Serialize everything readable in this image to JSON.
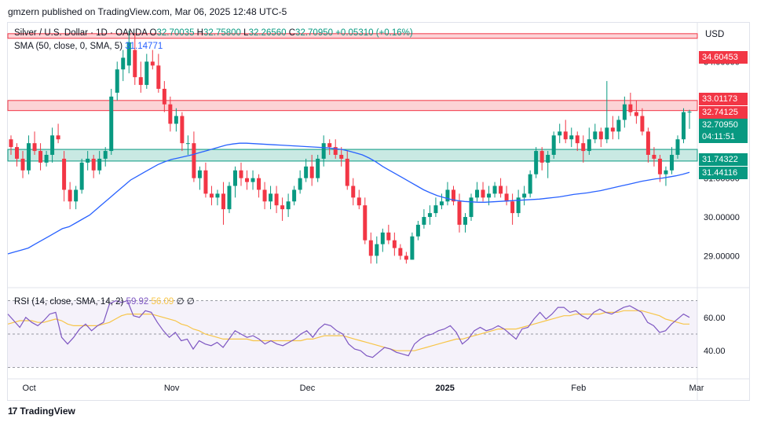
{
  "header": {
    "publisher": "gmzern published on TradingView.com, Mar 06, 2025 12:48 UTC-5"
  },
  "legend": {
    "symbol": "Silver / U.S. Dollar · 1D · OANDA",
    "o_label": "O",
    "o": "32.70035",
    "h_label": "H",
    "h": "32.75800",
    "l_label": "L",
    "l": "32.26560",
    "c_label": "C",
    "c": "32.70950",
    "change": "+0.05310 (+0.16%)",
    "sma_label": "SMA (50, close, 0, SMA, 5)",
    "sma_value": "31.14771"
  },
  "rsi_legend": {
    "label": "RSI (14, close, SMA, 14, 2)",
    "rsi_value": "59.92",
    "sma_value": "56.09",
    "extra1": "∅",
    "extra2": "∅"
  },
  "currency": "USD",
  "price_tags": [
    {
      "text": "34.60453",
      "color": "#f23645"
    },
    {
      "text": "33.01173",
      "color": "#f23645"
    },
    {
      "text": "32.74125",
      "color": "#f23645"
    },
    {
      "text": "32.70950",
      "color": "#089981"
    },
    {
      "text": "04:11:51",
      "color": "#089981"
    },
    {
      "text": "31.74322",
      "color": "#089981"
    },
    {
      "text": "31.44116",
      "color": "#089981"
    }
  ],
  "footer": {
    "brand": "TradingView"
  },
  "chart_data": {
    "type": "candlestick",
    "title": "Silver / U.S. Dollar · 1D · OANDA",
    "y_axis_ticks": [
      "34.00000",
      "33.00000",
      "32.00000",
      "31.00000",
      "30.00000",
      "29.00000"
    ],
    "y_tick_values": [
      34,
      33,
      32,
      31,
      30,
      29
    ],
    "ylim": [
      28.2,
      35.0
    ],
    "x_axis_ticks": [
      "Oct",
      "Nov",
      "Dec",
      "2025",
      "Feb",
      "Mar"
    ],
    "x_tick_index": [
      3,
      27,
      50,
      73,
      96,
      116
    ],
    "zones": [
      {
        "type": "resistance",
        "from": 34.6,
        "to": 34.72,
        "color": "#f23645"
      },
      {
        "type": "resistance",
        "from": 32.74,
        "to": 33.0,
        "color": "#f23645"
      },
      {
        "type": "support",
        "from": 31.44,
        "to": 31.74,
        "color": "#089981"
      }
    ],
    "candles": [
      [
        32.0,
        32.1,
        31.6,
        31.8
      ],
      [
        31.8,
        31.9,
        31.3,
        31.5
      ],
      [
        31.5,
        31.7,
        31.0,
        31.2
      ],
      [
        31.2,
        32.1,
        31.1,
        31.9
      ],
      [
        31.9,
        32.2,
        31.6,
        31.7
      ],
      [
        31.7,
        31.9,
        31.2,
        31.4
      ],
      [
        31.4,
        31.7,
        31.3,
        31.6
      ],
      [
        31.6,
        32.3,
        31.4,
        32.1
      ],
      [
        32.1,
        32.4,
        31.9,
        32.0
      ],
      [
        31.5,
        31.7,
        30.4,
        30.7
      ],
      [
        30.7,
        30.9,
        30.2,
        30.4
      ],
      [
        30.4,
        30.8,
        30.2,
        30.7
      ],
      [
        30.7,
        31.5,
        30.6,
        31.4
      ],
      [
        31.4,
        31.7,
        31.2,
        31.5
      ],
      [
        31.5,
        31.6,
        31.0,
        31.2
      ],
      [
        31.2,
        31.7,
        31.1,
        31.5
      ],
      [
        31.5,
        31.8,
        31.3,
        31.7
      ],
      [
        31.7,
        33.3,
        31.6,
        33.1
      ],
      [
        33.2,
        34.0,
        33.0,
        33.8
      ],
      [
        33.8,
        34.3,
        33.5,
        34.1
      ],
      [
        33.9,
        34.8,
        33.7,
        34.5
      ],
      [
        34.3,
        34.7,
        33.4,
        33.6
      ],
      [
        33.6,
        34.0,
        33.2,
        33.4
      ],
      [
        33.4,
        34.2,
        33.3,
        34.0
      ],
      [
        34.0,
        34.3,
        33.8,
        33.9
      ],
      [
        33.9,
        34.2,
        33.2,
        33.3
      ],
      [
        33.3,
        33.5,
        32.7,
        32.9
      ],
      [
        32.9,
        33.1,
        32.2,
        32.4
      ],
      [
        32.4,
        32.8,
        32.2,
        32.6
      ],
      [
        32.6,
        32.7,
        31.7,
        31.9
      ],
      [
        31.9,
        32.1,
        31.6,
        31.9
      ],
      [
        31.9,
        32.2,
        30.9,
        31.0
      ],
      [
        31.0,
        31.3,
        30.7,
        31.2
      ],
      [
        31.2,
        31.4,
        30.5,
        30.6
      ],
      [
        30.6,
        30.8,
        30.3,
        30.5
      ],
      [
        30.5,
        30.7,
        30.3,
        30.6
      ],
      [
        30.6,
        30.9,
        29.8,
        30.2
      ],
      [
        30.2,
        30.9,
        30.1,
        30.8
      ],
      [
        30.8,
        31.3,
        30.5,
        31.2
      ],
      [
        31.2,
        31.4,
        30.8,
        31.0
      ],
      [
        31.0,
        31.2,
        30.7,
        30.9
      ],
      [
        30.9,
        31.2,
        30.7,
        31.0
      ],
      [
        31.0,
        31.1,
        30.5,
        30.7
      ],
      [
        30.7,
        30.9,
        30.2,
        30.4
      ],
      [
        30.4,
        30.8,
        30.2,
        30.6
      ],
      [
        30.6,
        30.8,
        30.1,
        30.3
      ],
      [
        30.3,
        30.5,
        29.9,
        30.2
      ],
      [
        30.2,
        30.6,
        30.0,
        30.4
      ],
      [
        30.4,
        30.8,
        30.3,
        30.7
      ],
      [
        30.7,
        31.2,
        30.6,
        31.0
      ],
      [
        31.0,
        31.5,
        30.9,
        31.3
      ],
      [
        31.3,
        31.6,
        30.8,
        31.0
      ],
      [
        31.0,
        31.6,
        30.9,
        31.5
      ],
      [
        31.5,
        32.1,
        31.3,
        31.9
      ],
      [
        31.9,
        32.0,
        31.6,
        31.8
      ],
      [
        31.8,
        32.0,
        31.5,
        31.6
      ],
      [
        31.6,
        31.8,
        31.3,
        31.5
      ],
      [
        31.5,
        31.7,
        30.7,
        30.8
      ],
      [
        30.8,
        31.0,
        30.3,
        30.5
      ],
      [
        30.5,
        30.7,
        30.2,
        30.3
      ],
      [
        30.3,
        30.5,
        29.3,
        29.4
      ],
      [
        29.4,
        29.6,
        28.8,
        29.0
      ],
      [
        29.0,
        29.5,
        28.8,
        29.3
      ],
      [
        29.3,
        29.7,
        29.1,
        29.6
      ],
      [
        29.6,
        29.8,
        29.3,
        29.4
      ],
      [
        29.4,
        29.6,
        29.0,
        29.2
      ],
      [
        29.2,
        29.3,
        28.9,
        29.0
      ],
      [
        29.0,
        29.1,
        28.8,
        28.9
      ],
      [
        28.9,
        29.6,
        28.9,
        29.5
      ],
      [
        29.5,
        29.9,
        29.4,
        29.8
      ],
      [
        29.8,
        30.2,
        29.7,
        30.0
      ],
      [
        30.0,
        30.3,
        29.8,
        30.1
      ],
      [
        30.1,
        30.5,
        30.0,
        30.3
      ],
      [
        30.3,
        30.6,
        30.2,
        30.4
      ],
      [
        30.4,
        30.9,
        30.3,
        30.7
      ],
      [
        30.7,
        30.8,
        30.3,
        30.4
      ],
      [
        30.4,
        30.6,
        29.6,
        29.8
      ],
      [
        29.8,
        30.1,
        29.6,
        30.0
      ],
      [
        30.0,
        30.6,
        29.9,
        30.5
      ],
      [
        30.5,
        30.9,
        30.4,
        30.7
      ],
      [
        30.7,
        30.9,
        30.4,
        30.5
      ],
      [
        30.5,
        30.8,
        30.3,
        30.6
      ],
      [
        30.6,
        30.9,
        30.5,
        30.8
      ],
      [
        30.8,
        31.0,
        30.5,
        30.6
      ],
      [
        30.6,
        30.8,
        30.3,
        30.4
      ],
      [
        30.4,
        30.6,
        29.8,
        30.1
      ],
      [
        30.1,
        30.7,
        30.0,
        30.5
      ],
      [
        30.5,
        30.8,
        30.3,
        30.6
      ],
      [
        30.6,
        31.2,
        30.5,
        31.1
      ],
      [
        31.1,
        31.8,
        31.0,
        31.7
      ],
      [
        31.7,
        31.8,
        31.2,
        31.4
      ],
      [
        31.4,
        31.7,
        31.0,
        31.6
      ],
      [
        31.6,
        32.2,
        31.5,
        32.1
      ],
      [
        32.1,
        32.4,
        31.9,
        32.2
      ],
      [
        32.2,
        32.5,
        31.9,
        32.0
      ],
      [
        32.0,
        32.3,
        31.8,
        32.1
      ],
      [
        32.1,
        32.2,
        31.7,
        31.9
      ],
      [
        31.9,
        32.1,
        31.4,
        31.7
      ],
      [
        31.7,
        32.3,
        31.6,
        32.0
      ],
      [
        32.0,
        32.4,
        31.9,
        32.2
      ],
      [
        32.2,
        32.3,
        31.8,
        32.0
      ],
      [
        32.0,
        33.5,
        31.9,
        32.3
      ],
      [
        32.3,
        32.6,
        32.0,
        32.2
      ],
      [
        32.2,
        32.6,
        32.0,
        32.5
      ],
      [
        32.5,
        33.1,
        32.3,
        32.9
      ],
      [
        32.9,
        33.2,
        32.6,
        32.7
      ],
      [
        32.7,
        33.0,
        32.4,
        32.6
      ],
      [
        32.6,
        32.8,
        32.1,
        32.2
      ],
      [
        32.2,
        32.3,
        31.4,
        31.6
      ],
      [
        31.6,
        31.8,
        31.3,
        31.5
      ],
      [
        31.5,
        31.6,
        30.9,
        31.1
      ],
      [
        31.1,
        31.3,
        30.8,
        31.2
      ],
      [
        31.2,
        31.8,
        31.1,
        31.6
      ],
      [
        31.6,
        32.1,
        31.5,
        32.0
      ],
      [
        32.0,
        32.8,
        31.9,
        32.7
      ],
      [
        32.7,
        32.76,
        32.27,
        32.71
      ]
    ],
    "sma50": [
      29.05,
      29.1,
      29.15,
      29.2,
      29.3,
      29.4,
      29.5,
      29.6,
      29.7,
      29.75,
      29.85,
      29.95,
      30.05,
      30.2,
      30.35,
      30.5,
      30.65,
      30.8,
      30.95,
      31.05,
      31.15,
      31.25,
      31.35,
      31.42,
      31.48,
      31.52,
      31.56,
      31.6,
      31.65,
      31.7,
      31.75,
      31.8,
      31.85,
      31.88,
      31.9,
      31.9,
      31.89,
      31.88,
      31.87,
      31.86,
      31.85,
      31.84,
      31.83,
      31.82,
      31.81,
      31.8,
      31.79,
      31.78,
      31.76,
      31.74,
      31.7,
      31.65,
      31.6,
      31.52,
      31.42,
      31.3,
      31.2,
      31.1,
      31.0,
      30.9,
      30.8,
      30.7,
      30.62,
      30.55,
      30.5,
      30.45,
      30.42,
      30.4,
      30.39,
      30.38,
      30.38,
      30.39,
      30.4,
      30.41,
      30.42,
      30.43,
      30.44,
      30.45,
      30.46,
      30.48,
      30.5,
      30.52,
      30.55,
      30.58,
      30.6,
      30.62,
      30.65,
      30.68,
      30.72,
      30.76,
      30.8,
      30.84,
      30.88,
      30.92,
      30.95,
      30.98,
      31.0,
      31.03,
      31.06,
      31.1,
      31.15
    ],
    "rsi": {
      "label": "RSI (14, close, SMA, 14, 2)",
      "ylim": [
        25,
        75
      ],
      "y_axis_ticks": [
        "60.00",
        "40.00"
      ],
      "y_tick_values": [
        60,
        40
      ],
      "bands": [
        70,
        50,
        30
      ],
      "rsi_values": [
        62,
        58,
        54,
        60,
        57,
        55,
        58,
        62,
        63,
        48,
        44,
        48,
        53,
        56,
        52,
        55,
        57,
        68,
        70,
        69,
        70,
        61,
        60,
        64,
        63,
        57,
        52,
        48,
        51,
        46,
        47,
        41,
        46,
        44,
        43,
        45,
        42,
        47,
        52,
        50,
        48,
        49,
        47,
        44,
        46,
        44,
        43,
        45,
        47,
        50,
        52,
        48,
        53,
        56,
        55,
        52,
        50,
        44,
        41,
        40,
        37,
        36,
        39,
        42,
        41,
        39,
        38,
        37,
        44,
        47,
        49,
        50,
        52,
        53,
        55,
        51,
        44,
        47,
        52,
        54,
        52,
        53,
        55,
        53,
        50,
        47,
        53,
        54,
        59,
        63,
        59,
        62,
        66,
        66,
        63,
        64,
        61,
        59,
        63,
        65,
        63,
        62,
        64,
        66,
        67,
        65,
        63,
        57,
        55,
        51,
        52,
        56,
        59,
        62,
        60
      ],
      "sma_values": [
        56,
        57,
        58,
        58,
        58,
        57,
        57,
        58,
        59,
        58,
        56,
        55,
        55,
        55,
        55,
        55,
        56,
        57,
        59,
        61,
        62,
        62,
        62,
        62,
        62,
        61,
        60,
        59,
        58,
        56,
        55,
        53,
        52,
        50,
        49,
        48,
        47,
        47,
        47,
        47,
        47,
        46,
        46,
        46,
        46,
        46,
        46,
        46,
        46,
        46,
        47,
        47,
        48,
        49,
        49,
        49,
        49,
        48,
        47,
        46,
        45,
        44,
        43,
        42,
        41,
        40,
        40,
        40,
        40,
        41,
        42,
        43,
        44,
        45,
        46,
        47,
        47,
        48,
        49,
        50,
        51,
        52,
        53,
        53,
        53,
        53,
        54,
        55,
        56,
        57,
        58,
        59,
        60,
        61,
        61,
        62,
        62,
        62,
        62,
        62,
        63,
        63,
        63,
        64,
        64,
        64,
        64,
        63,
        62,
        61,
        59,
        58,
        57,
        56,
        56
      ]
    }
  }
}
